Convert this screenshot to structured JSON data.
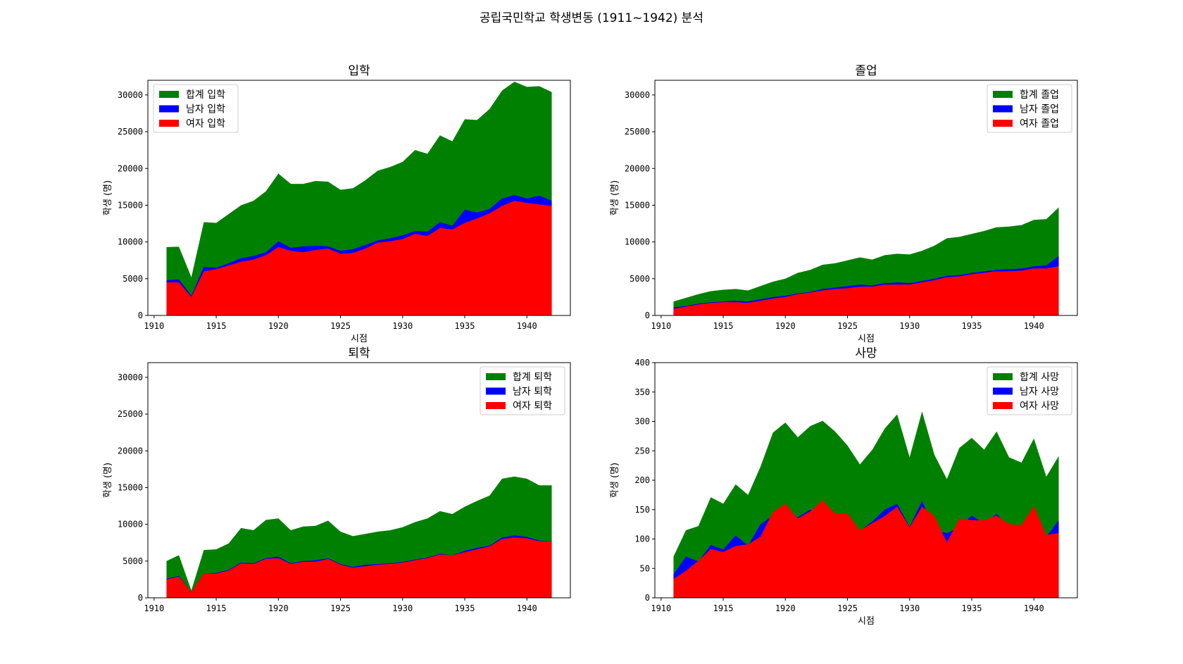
{
  "figure": {
    "suptitle": "공립국민학교 학생변동 (1911~1942) 분석"
  },
  "colors": {
    "total": "#008000",
    "male": "#0000ff",
    "female": "#ff0000"
  },
  "chart_data": [
    {
      "type": "area",
      "title": "입학",
      "xlabel": "시점",
      "ylabel": "학생 (명)",
      "xlim": [
        1909.5,
        1943.5
      ],
      "ylim": [
        0,
        32000
      ],
      "xticks": [
        1910,
        1915,
        1920,
        1925,
        1930,
        1935,
        1940
      ],
      "yticks": [
        0,
        5000,
        10000,
        15000,
        20000,
        25000,
        30000
      ],
      "legend_position": "upper left",
      "x": [
        1911,
        1912,
        1913,
        1914,
        1915,
        1916,
        1917,
        1918,
        1919,
        1920,
        1921,
        1922,
        1923,
        1924,
        1925,
        1926,
        1927,
        1928,
        1929,
        1930,
        1931,
        1932,
        1933,
        1934,
        1935,
        1936,
        1937,
        1938,
        1939,
        1940,
        1941,
        1942
      ],
      "series": [
        {
          "name": "합계 입학",
          "color": "#008000",
          "values": [
            9300,
            9350,
            5200,
            12700,
            12600,
            13800,
            15000,
            15600,
            16900,
            19300,
            17900,
            17900,
            18300,
            18200,
            17100,
            17300,
            18400,
            19700,
            20200,
            20900,
            22500,
            22000,
            24500,
            23700,
            26700,
            26600,
            28100,
            30600,
            31800,
            31100,
            31200,
            30400
          ]
        },
        {
          "name": "남자 입학",
          "color": "#0000ff",
          "values": [
            4800,
            4900,
            2700,
            6600,
            6500,
            7100,
            7800,
            8100,
            8600,
            10100,
            9200,
            9400,
            9500,
            9400,
            8800,
            9000,
            9600,
            10200,
            10500,
            10900,
            11500,
            11400,
            12700,
            12200,
            14400,
            14000,
            14500,
            15900,
            16400,
            15900,
            16300,
            15600
          ]
        },
        {
          "name": "여자 입학",
          "color": "#ff0000",
          "values": [
            4500,
            4500,
            2500,
            6000,
            6300,
            6800,
            7300,
            7600,
            8200,
            9300,
            8800,
            8600,
            8900,
            9100,
            8400,
            8500,
            9100,
            9900,
            10100,
            10400,
            11100,
            10800,
            11900,
            11700,
            12600,
            13200,
            13900,
            14900,
            15600,
            15300,
            15100,
            14900
          ]
        }
      ]
    },
    {
      "type": "area",
      "title": "졸업",
      "xlabel": "시점",
      "ylabel": "학생 (명)",
      "xlim": [
        1909.5,
        1943.5
      ],
      "ylim": [
        0,
        32000
      ],
      "xticks": [
        1910,
        1915,
        1920,
        1925,
        1930,
        1935,
        1940
      ],
      "yticks": [
        0,
        5000,
        10000,
        15000,
        20000,
        25000,
        30000
      ],
      "legend_position": "upper right",
      "x": [
        1911,
        1912,
        1913,
        1914,
        1915,
        1916,
        1917,
        1918,
        1919,
        1920,
        1921,
        1922,
        1923,
        1924,
        1925,
        1926,
        1927,
        1928,
        1929,
        1930,
        1931,
        1932,
        1933,
        1934,
        1935,
        1936,
        1937,
        1938,
        1939,
        1940,
        1941,
        1942
      ],
      "series": [
        {
          "name": "합계 졸업",
          "color": "#008000",
          "values": [
            1900,
            2400,
            2900,
            3300,
            3500,
            3600,
            3400,
            4000,
            4600,
            5000,
            5800,
            6200,
            6900,
            7100,
            7500,
            7900,
            7600,
            8200,
            8400,
            8300,
            8800,
            9500,
            10500,
            10700,
            11100,
            11500,
            12000,
            12100,
            12300,
            13000,
            13100,
            14700
          ]
        },
        {
          "name": "남자 졸업",
          "color": "#0000ff",
          "values": [
            1100,
            1300,
            1600,
            1800,
            1900,
            2000,
            1900,
            2200,
            2500,
            2700,
            3000,
            3200,
            3600,
            3800,
            4000,
            4200,
            4100,
            4400,
            4500,
            4400,
            4700,
            5000,
            5400,
            5500,
            5800,
            6000,
            6200,
            6300,
            6400,
            6700,
            6800,
            8100
          ]
        },
        {
          "name": "여자 졸업",
          "color": "#ff0000",
          "values": [
            900,
            1200,
            1500,
            1700,
            1800,
            1800,
            1700,
            2000,
            2300,
            2500,
            2900,
            3100,
            3400,
            3600,
            3700,
            3900,
            3900,
            4200,
            4200,
            4200,
            4500,
            4800,
            5200,
            5300,
            5600,
            5800,
            6000,
            6000,
            6100,
            6400,
            6400,
            6700
          ]
        }
      ]
    },
    {
      "type": "area",
      "title": "퇴학",
      "xlabel": "",
      "ylabel": "학생 (명)",
      "xlim": [
        1909.5,
        1943.5
      ],
      "ylim": [
        0,
        32000
      ],
      "xticks": [
        1910,
        1915,
        1920,
        1925,
        1930,
        1935,
        1940
      ],
      "yticks": [
        0,
        5000,
        10000,
        15000,
        20000,
        25000,
        30000
      ],
      "legend_position": "upper right",
      "x": [
        1911,
        1912,
        1913,
        1914,
        1915,
        1916,
        1917,
        1918,
        1919,
        1920,
        1921,
        1922,
        1923,
        1924,
        1925,
        1926,
        1927,
        1928,
        1929,
        1930,
        1931,
        1932,
        1933,
        1934,
        1935,
        1936,
        1937,
        1938,
        1939,
        1940,
        1941,
        1942
      ],
      "series": [
        {
          "name": "합계 퇴학",
          "color": "#008000",
          "values": [
            5000,
            5800,
            1000,
            6500,
            6600,
            7400,
            9500,
            9200,
            10600,
            10800,
            9200,
            9700,
            9800,
            10500,
            9000,
            8400,
            8700,
            9000,
            9200,
            9600,
            10300,
            10800,
            11800,
            11400,
            12400,
            13200,
            13900,
            16200,
            16500,
            16200,
            15300,
            15300
          ]
        },
        {
          "name": "남자 퇴학",
          "color": "#0000ff",
          "values": [
            2600,
            3000,
            800,
            3300,
            3400,
            3800,
            4800,
            4700,
            5400,
            5600,
            4700,
            5000,
            5100,
            5400,
            4600,
            4200,
            4500,
            4600,
            4700,
            4900,
            5200,
            5500,
            6000,
            5800,
            6400,
            6800,
            7100,
            8200,
            8500,
            8300,
            7800,
            7700
          ]
        },
        {
          "name": "여자 퇴학",
          "color": "#ff0000",
          "values": [
            2500,
            2900,
            800,
            3300,
            3300,
            3700,
            4700,
            4600,
            5300,
            5400,
            4600,
            4900,
            4900,
            5300,
            4500,
            4100,
            4300,
            4500,
            4600,
            4800,
            5100,
            5400,
            5900,
            5800,
            6200,
            6600,
            7000,
            8000,
            8200,
            8100,
            7700,
            7700
          ]
        }
      ]
    },
    {
      "type": "area",
      "title": "사망",
      "xlabel": "시점",
      "ylabel": "학생 (명)",
      "xlim": [
        1909.5,
        1943.5
      ],
      "ylim": [
        0,
        400
      ],
      "xticks": [
        1910,
        1915,
        1920,
        1925,
        1930,
        1935,
        1940
      ],
      "yticks": [
        0,
        50,
        100,
        150,
        200,
        250,
        300,
        350,
        400
      ],
      "legend_position": "upper right",
      "x": [
        1911,
        1912,
        1913,
        1914,
        1915,
        1916,
        1917,
        1918,
        1919,
        1920,
        1921,
        1922,
        1923,
        1924,
        1925,
        1926,
        1927,
        1928,
        1929,
        1930,
        1931,
        1932,
        1933,
        1934,
        1935,
        1936,
        1937,
        1938,
        1939,
        1940,
        1941,
        1942
      ],
      "series": [
        {
          "name": "합계 사망",
          "color": "#008000",
          "values": [
            70,
            115,
            122,
            171,
            160,
            193,
            175,
            223,
            281,
            298,
            273,
            292,
            301,
            283,
            259,
            227,
            252,
            288,
            312,
            239,
            317,
            243,
            202,
            255,
            272,
            252,
            283,
            239,
            230,
            271,
            206,
            241
          ]
        },
        {
          "name": "남자 사망",
          "color": "#0000ff",
          "values": [
            40,
            70,
            62,
            90,
            82,
            106,
            89,
            125,
            140,
            140,
            137,
            150,
            136,
            142,
            116,
            114,
            130,
            150,
            160,
            121,
            165,
            115,
            110,
            120,
            140,
            126,
            143,
            120,
            106,
            117,
            104,
            132
          ]
        },
        {
          "name": "여자 사망",
          "color": "#ff0000",
          "values": [
            32,
            46,
            63,
            83,
            78,
            88,
            91,
            104,
            146,
            160,
            135,
            147,
            166,
            143,
            143,
            115,
            127,
            139,
            155,
            120,
            155,
            139,
            94,
            135,
            132,
            132,
            140,
            125,
            124,
            156,
            107,
            110
          ]
        }
      ]
    }
  ]
}
